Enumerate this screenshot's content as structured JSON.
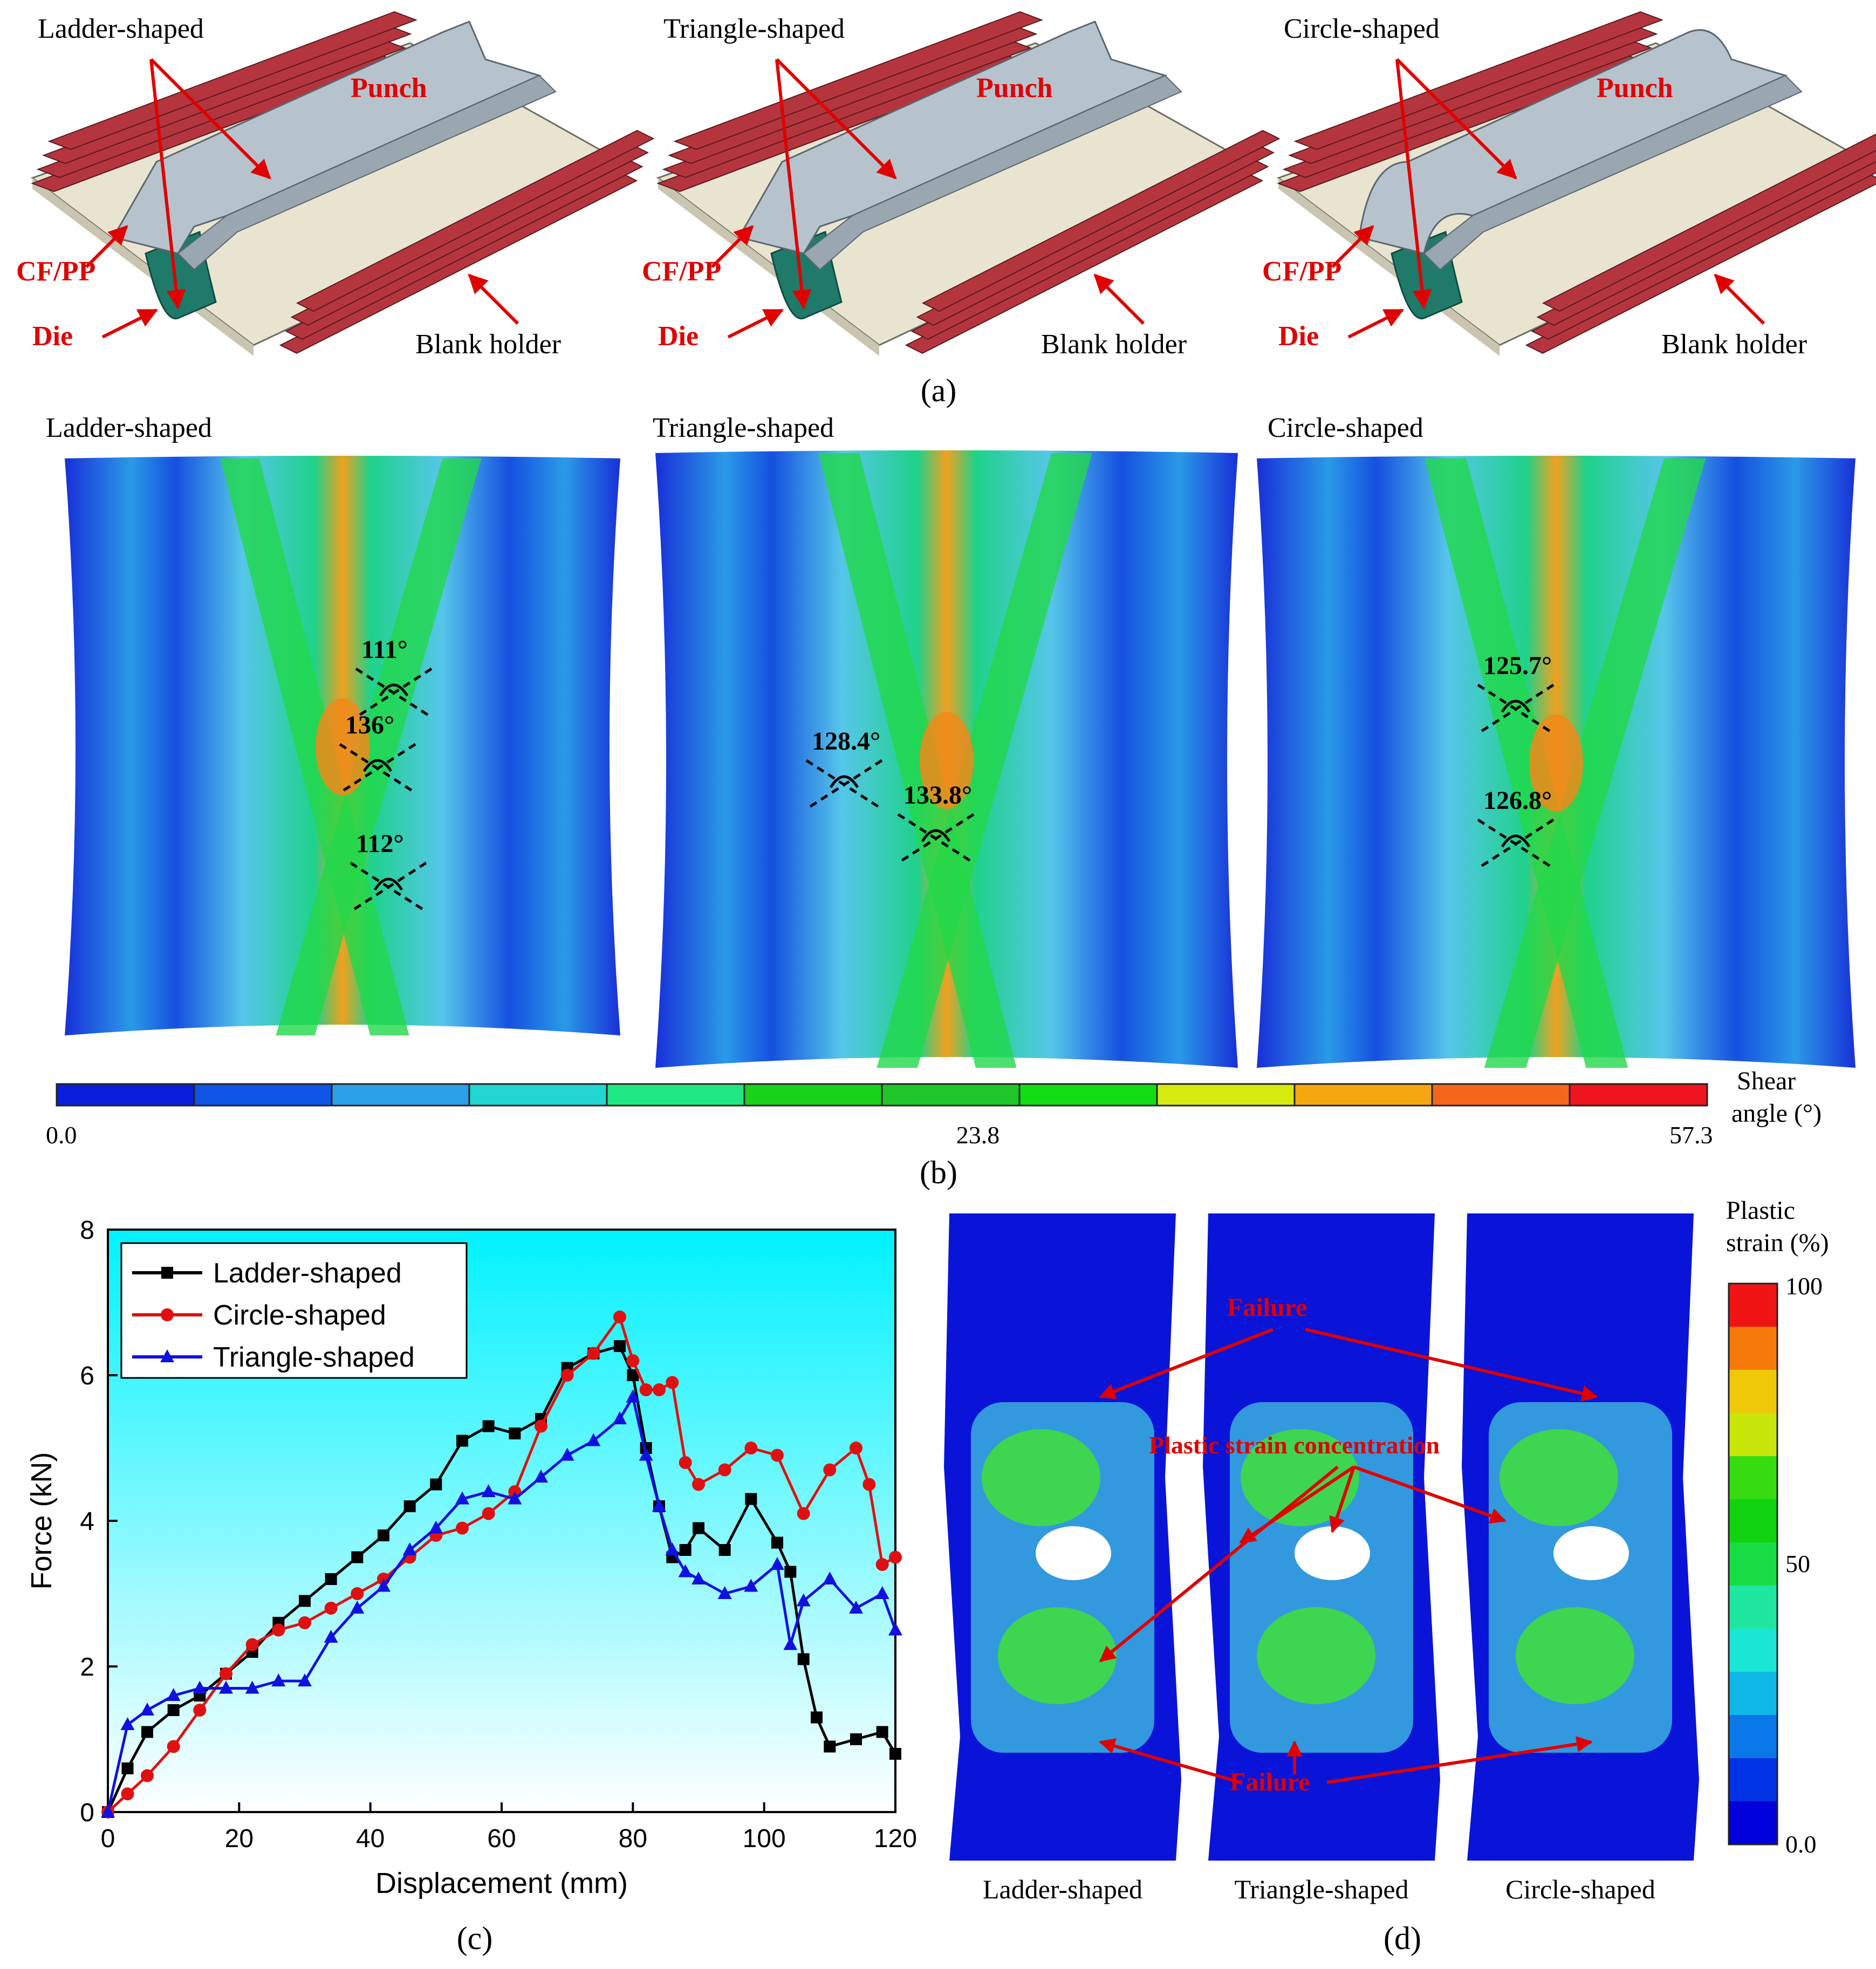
{
  "panel_a": {
    "label": "(a)",
    "models": [
      {
        "title": "Ladder-shaped",
        "punch": "Punch",
        "material": "CF/PP",
        "die": "Die",
        "holder": "Blank holder"
      },
      {
        "title": "Triangle-shaped",
        "punch": "Punch",
        "material": "CF/PP",
        "die": "Die",
        "holder": "Blank holder"
      },
      {
        "title": "Circle-shaped",
        "punch": "Punch",
        "material": "CF/PP",
        "die": "Die",
        "holder": "Blank holder"
      }
    ],
    "colors": {
      "holder": "#b5353e",
      "punch": "#b7c3cc",
      "blank": "#e8e4d0",
      "die": "#1f7a6a",
      "annotation": "#e00000"
    }
  },
  "panel_b": {
    "label": "(b)",
    "maps": [
      {
        "title": "Ladder-shaped",
        "angles": [
          "111°",
          "136°",
          "112°"
        ]
      },
      {
        "title": "Triangle-shaped",
        "angles": [
          "128.4°",
          "133.8°"
        ]
      },
      {
        "title": "Circle-shaped",
        "angles": [
          "125.7°",
          "126.8°"
        ]
      }
    ],
    "colorbar": {
      "title_line1": "Shear",
      "title_line2": "angle (°)",
      "min_label": "0.0",
      "mid_label": "23.8",
      "max_label": "57.3",
      "colors": [
        "#0a1edc",
        "#0f55e8",
        "#2aa0e6",
        "#22d6d2",
        "#1fe882",
        "#18d21c",
        "#1fc62a",
        "#12dc14",
        "#d6ea10",
        "#f5a70f",
        "#f5661a",
        "#f0141e"
      ]
    }
  },
  "panel_c": {
    "label": "(c)",
    "chart_data": {
      "type": "line",
      "xlabel": "Displacement (mm)",
      "ylabel": "Force (kN)",
      "xlim": [
        0,
        120
      ],
      "ylim": [
        0,
        8
      ],
      "xticks": [
        "0",
        "20",
        "40",
        "60",
        "80",
        "100",
        "120"
      ],
      "yticks": [
        "0",
        "2",
        "4",
        "6",
        "8"
      ],
      "legend_position": "top-left",
      "series": [
        {
          "name": "Ladder-shaped",
          "color": "#000000",
          "marker": "square",
          "x": [
            0,
            3,
            6,
            10,
            14,
            18,
            22,
            26,
            30,
            34,
            38,
            42,
            46,
            50,
            54,
            58,
            62,
            66,
            70,
            74,
            78,
            80,
            82,
            84,
            86,
            88,
            90,
            94,
            98,
            102,
            104,
            106,
            108,
            110,
            114,
            118,
            120
          ],
          "y": [
            0,
            0.6,
            1.1,
            1.4,
            1.6,
            1.9,
            2.2,
            2.6,
            2.9,
            3.2,
            3.5,
            3.8,
            4.2,
            4.5,
            5.1,
            5.3,
            5.2,
            5.4,
            6.1,
            6.3,
            6.4,
            6.0,
            5.0,
            4.2,
            3.5,
            3.6,
            3.9,
            3.6,
            4.3,
            3.7,
            3.3,
            2.1,
            1.3,
            0.9,
            1.0,
            1.1,
            0.8
          ]
        },
        {
          "name": "Circle-shaped",
          "color": "#e01010",
          "marker": "circle",
          "x": [
            0,
            3,
            6,
            10,
            14,
            18,
            22,
            26,
            30,
            34,
            38,
            42,
            46,
            50,
            54,
            58,
            62,
            66,
            70,
            74,
            78,
            80,
            82,
            84,
            86,
            88,
            90,
            94,
            98,
            102,
            106,
            110,
            114,
            116,
            118,
            120
          ],
          "y": [
            0,
            0.25,
            0.5,
            0.9,
            1.4,
            1.9,
            2.3,
            2.5,
            2.6,
            2.8,
            3.0,
            3.2,
            3.5,
            3.8,
            3.9,
            4.1,
            4.4,
            5.3,
            6.0,
            6.3,
            6.8,
            6.2,
            5.8,
            5.8,
            5.9,
            4.8,
            4.5,
            4.7,
            5.0,
            4.9,
            4.1,
            4.7,
            5.0,
            4.5,
            3.4,
            3.5
          ]
        },
        {
          "name": "Triangle-shaped",
          "color": "#1010e0",
          "marker": "triangle",
          "x": [
            0,
            3,
            6,
            10,
            14,
            18,
            22,
            26,
            30,
            34,
            38,
            42,
            46,
            50,
            54,
            58,
            62,
            66,
            70,
            74,
            78,
            80,
            82,
            84,
            86,
            88,
            90,
            94,
            98,
            102,
            104,
            106,
            110,
            114,
            118,
            120
          ],
          "y": [
            0,
            1.2,
            1.4,
            1.6,
            1.7,
            1.7,
            1.7,
            1.8,
            1.8,
            2.4,
            2.8,
            3.1,
            3.6,
            3.9,
            4.3,
            4.4,
            4.3,
            4.6,
            4.9,
            5.1,
            5.4,
            5.7,
            4.9,
            4.2,
            3.6,
            3.3,
            3.2,
            3.0,
            3.1,
            3.4,
            2.3,
            2.9,
            3.2,
            2.8,
            3.0,
            2.5
          ]
        }
      ]
    }
  },
  "panel_d": {
    "label": "(d)",
    "samples": [
      "Ladder-shaped",
      "Triangle-shaped",
      "Circle-shaped"
    ],
    "annotations": {
      "failure_top": "Failure",
      "failure_bottom": "Failure",
      "concentration": "Plastic strain concentration"
    },
    "colorbar": {
      "title_line1": "Plastic",
      "title_line2": "strain (%)",
      "max_label": "100",
      "mid_label": "50",
      "min_label": "0.0",
      "colors": [
        "#0000dc",
        "#0032e6",
        "#0a78e8",
        "#10b8e8",
        "#1ae6d6",
        "#1ee6a0",
        "#18dc44",
        "#10d210",
        "#36dc10",
        "#c8e60a",
        "#f0c80a",
        "#f57a0a",
        "#f01414"
      ]
    }
  }
}
